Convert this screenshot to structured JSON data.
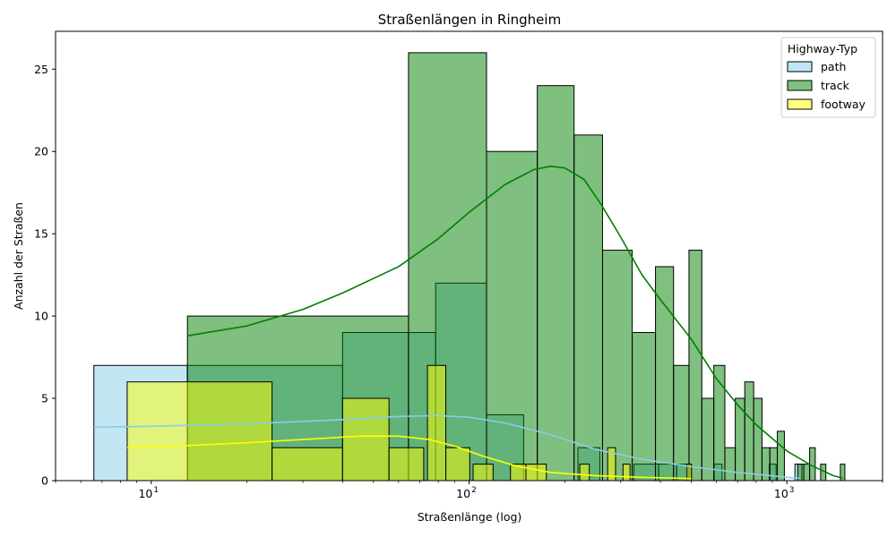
{
  "chart_data": {
    "type": "histogram",
    "title": "Straßenlängen in Ringheim",
    "xlabel": "Straßenlänge (log)",
    "ylabel": "Anzahl der Straßen",
    "xscale": "log",
    "xlim": [
      5,
      2000
    ],
    "ylim": [
      0,
      27.3
    ],
    "y_ticks": [
      0,
      5,
      10,
      15,
      20,
      25
    ],
    "x_ticks": [
      {
        "value": 10,
        "base": "10",
        "exp": "1"
      },
      {
        "value": 100,
        "base": "10",
        "exp": "2"
      },
      {
        "value": 1000,
        "base": "10",
        "exp": "3"
      }
    ],
    "legend": {
      "title": "Highway-Typ",
      "position": "top-right",
      "entries": [
        {
          "label": "path",
          "series": "path"
        },
        {
          "label": "track",
          "series": "track"
        },
        {
          "label": "footway",
          "series": "footway"
        }
      ]
    },
    "series": [
      {
        "name": "path",
        "fill": "#87ceeb",
        "line": "#87ceeb",
        "fill_opacity": 0.5,
        "bins": [
          {
            "x0": 6.6,
            "x1": 13.0,
            "count": 7
          },
          {
            "x0": 13.0,
            "x1": 40.0,
            "count": 7
          },
          {
            "x0": 40.0,
            "x1": 64.5,
            "count": 9
          },
          {
            "x0": 64.5,
            "x1": 78.5,
            "count": 9
          },
          {
            "x0": 78.5,
            "x1": 113.5,
            "count": 12
          },
          {
            "x0": 113.5,
            "x1": 148.5,
            "count": 4
          },
          {
            "x0": 220,
            "x1": 258,
            "count": 2
          },
          {
            "x0": 330,
            "x1": 395,
            "count": 1
          },
          {
            "x0": 395,
            "x1": 450,
            "count": 1
          },
          {
            "x0": 450,
            "x1": 500,
            "count": 1
          },
          {
            "x0": 590,
            "x1": 625,
            "count": 1
          },
          {
            "x0": 880,
            "x1": 925,
            "count": 1
          },
          {
            "x0": 1060,
            "x1": 1115,
            "count": 1
          }
        ],
        "kde": {
          "x": [
            6.6,
            10,
            20,
            40,
            60,
            80,
            100,
            130,
            180,
            250,
            350,
            500,
            700,
            1000,
            1100
          ],
          "y": [
            3.25,
            3.3,
            3.45,
            3.7,
            3.9,
            3.95,
            3.85,
            3.5,
            2.8,
            1.9,
            1.3,
            0.85,
            0.5,
            0.2,
            0.15
          ]
        }
      },
      {
        "name": "track",
        "fill": "#008000",
        "line": "#008000",
        "fill_opacity": 0.5,
        "bins": [
          {
            "x0": 13.0,
            "x1": 64.5,
            "count": 10
          },
          {
            "x0": 64.5,
            "x1": 113.5,
            "count": 26
          },
          {
            "x0": 113.5,
            "x1": 164,
            "count": 20
          },
          {
            "x0": 164,
            "x1": 214,
            "count": 24
          },
          {
            "x0": 214,
            "x1": 263,
            "count": 21
          },
          {
            "x0": 263,
            "x1": 326,
            "count": 14
          },
          {
            "x0": 326,
            "x1": 386,
            "count": 9
          },
          {
            "x0": 386,
            "x1": 440,
            "count": 13
          },
          {
            "x0": 440,
            "x1": 492,
            "count": 7
          },
          {
            "x0": 492,
            "x1": 540,
            "count": 14
          },
          {
            "x0": 540,
            "x1": 589,
            "count": 5
          },
          {
            "x0": 589,
            "x1": 638,
            "count": 7
          },
          {
            "x0": 638,
            "x1": 688,
            "count": 2
          },
          {
            "x0": 688,
            "x1": 737,
            "count": 5
          },
          {
            "x0": 737,
            "x1": 786,
            "count": 6
          },
          {
            "x0": 786,
            "x1": 835,
            "count": 5
          },
          {
            "x0": 835,
            "x1": 884,
            "count": 2
          },
          {
            "x0": 884,
            "x1": 933,
            "count": 2
          },
          {
            "x0": 933,
            "x1": 982,
            "count": 3
          },
          {
            "x0": 1081,
            "x1": 1130,
            "count": 1
          },
          {
            "x0": 1130,
            "x1": 1179,
            "count": 1
          },
          {
            "x0": 1179,
            "x1": 1228,
            "count": 2
          },
          {
            "x0": 1277,
            "x1": 1326,
            "count": 1
          },
          {
            "x0": 1473,
            "x1": 1522,
            "count": 1
          }
        ],
        "kde": {
          "x": [
            13,
            20,
            30,
            40,
            60,
            80,
            100,
            130,
            160,
            180,
            200,
            230,
            260,
            300,
            350,
            400,
            500,
            600,
            700,
            800,
            1000,
            1200,
            1400,
            1500
          ],
          "y": [
            8.8,
            9.4,
            10.4,
            11.4,
            13.0,
            14.7,
            16.3,
            18.0,
            18.9,
            19.1,
            19.0,
            18.3,
            16.8,
            14.8,
            12.5,
            11.0,
            8.6,
            6.2,
            4.6,
            3.4,
            1.8,
            0.9,
            0.3,
            0.15
          ]
        }
      },
      {
        "name": "footway",
        "fill": "#ffff00",
        "line": "#ffff00",
        "fill_opacity": 0.5,
        "bins": [
          {
            "x0": 8.4,
            "x1": 24.0,
            "count": 6
          },
          {
            "x0": 24.0,
            "x1": 40.0,
            "count": 2
          },
          {
            "x0": 40.0,
            "x1": 56.0,
            "count": 5
          },
          {
            "x0": 56.0,
            "x1": 72.0,
            "count": 2
          },
          {
            "x0": 74.0,
            "x1": 84.5,
            "count": 7
          },
          {
            "x0": 84.5,
            "x1": 100.5,
            "count": 2
          },
          {
            "x0": 103,
            "x1": 119,
            "count": 1
          },
          {
            "x0": 135,
            "x1": 151,
            "count": 1
          },
          {
            "x0": 151,
            "x1": 175,
            "count": 1
          },
          {
            "x0": 223,
            "x1": 239,
            "count": 1
          },
          {
            "x0": 273,
            "x1": 289,
            "count": 2
          },
          {
            "x0": 305,
            "x1": 321,
            "count": 1
          },
          {
            "x0": 485,
            "x1": 501,
            "count": 1
          }
        ],
        "kde": {
          "x": [
            8.4,
            12,
            20,
            30,
            45,
            60,
            75,
            90,
            110,
            140,
            180,
            250,
            350,
            450,
            500
          ],
          "y": [
            2.0,
            2.1,
            2.3,
            2.5,
            2.7,
            2.7,
            2.5,
            2.1,
            1.5,
            0.9,
            0.5,
            0.3,
            0.2,
            0.15,
            0.12
          ]
        }
      }
    ]
  }
}
